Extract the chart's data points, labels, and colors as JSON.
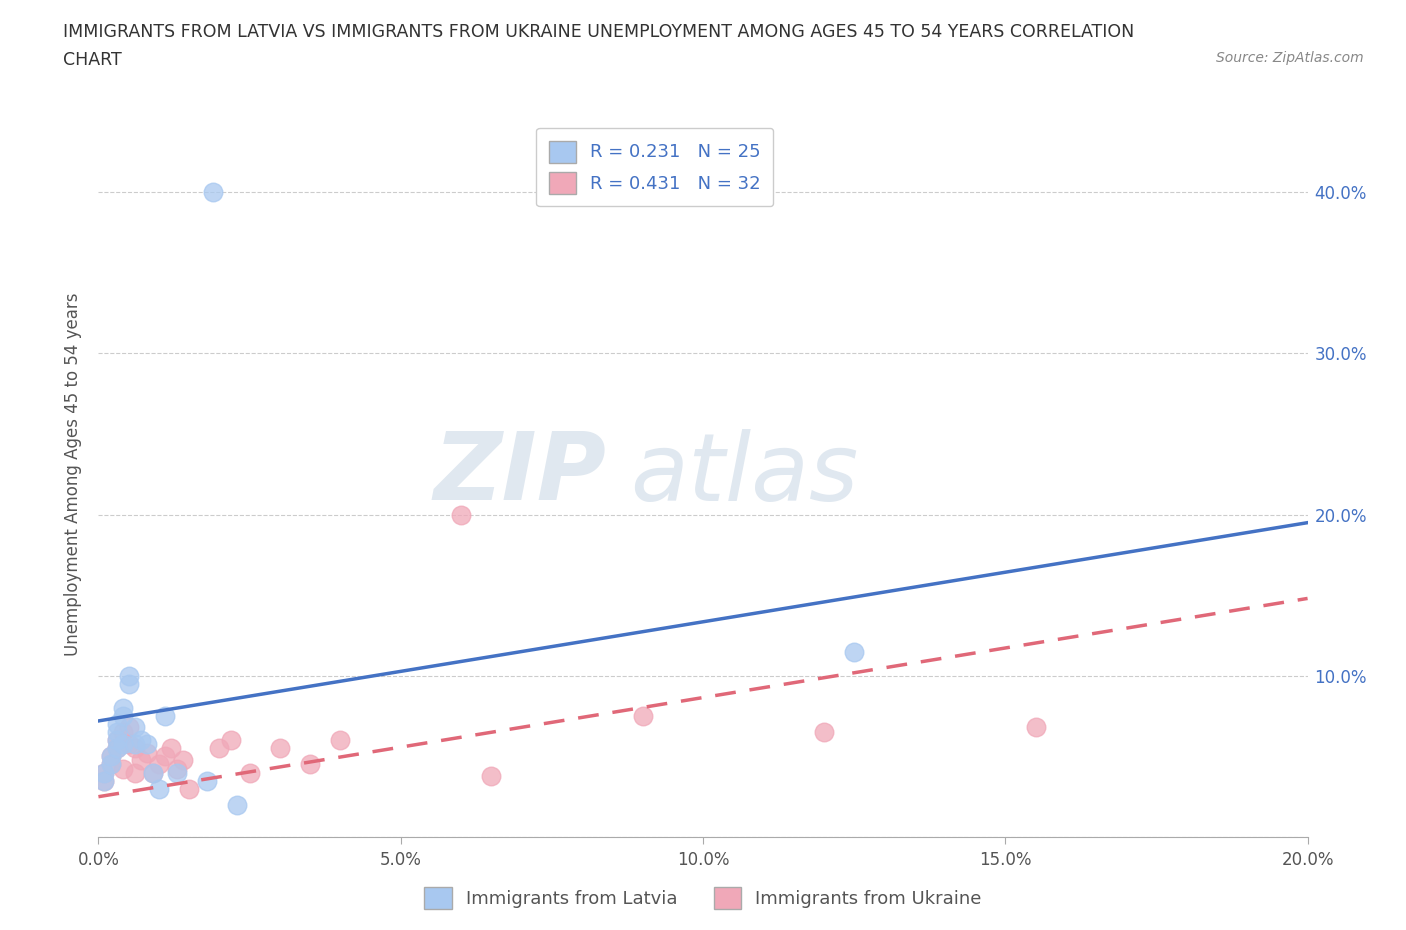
{
  "title_line1": "IMMIGRANTS FROM LATVIA VS IMMIGRANTS FROM UKRAINE UNEMPLOYMENT AMONG AGES 45 TO 54 YEARS CORRELATION",
  "title_line2": "CHART",
  "source": "Source: ZipAtlas.com",
  "ylabel": "Unemployment Among Ages 45 to 54 years",
  "xlim": [
    0,
    0.2
  ],
  "ylim": [
    0,
    0.45
  ],
  "xticks": [
    0.0,
    0.05,
    0.1,
    0.15,
    0.2
  ],
  "yticks": [
    0.0,
    0.1,
    0.2,
    0.3,
    0.4
  ],
  "xtick_labels": [
    "0.0%",
    "5.0%",
    "10.0%",
    "15.0%",
    "20.0%"
  ],
  "ytick_labels_right": [
    "",
    "10.0%",
    "20.0%",
    "30.0%",
    "40.0%"
  ],
  "latvia_color": "#a8c8f0",
  "ukraine_color": "#f0a8b8",
  "latvia_line_color": "#4472c4",
  "ukraine_line_color": "#e06878",
  "latvia_R": 0.231,
  "latvia_N": 25,
  "ukraine_R": 0.431,
  "ukraine_N": 32,
  "legend_label_latvia": "Immigrants from Latvia",
  "legend_label_ukraine": "Immigrants from Ukraine",
  "background_color": "#ffffff",
  "grid_color": "#cccccc",
  "watermark_zip": "ZIP",
  "watermark_atlas": "atlas",
  "latvia_line_x0": 0.0,
  "latvia_line_y0": 0.072,
  "latvia_line_x1": 0.2,
  "latvia_line_y1": 0.195,
  "ukraine_line_x0": 0.0,
  "ukraine_line_y0": 0.025,
  "ukraine_line_x1": 0.2,
  "ukraine_line_y1": 0.148,
  "latvia_x": [
    0.001,
    0.001,
    0.002,
    0.002,
    0.003,
    0.003,
    0.003,
    0.003,
    0.004,
    0.004,
    0.004,
    0.005,
    0.005,
    0.006,
    0.006,
    0.007,
    0.008,
    0.009,
    0.01,
    0.011,
    0.013,
    0.018,
    0.023,
    0.125,
    0.019
  ],
  "latvia_y": [
    0.04,
    0.035,
    0.05,
    0.045,
    0.06,
    0.055,
    0.065,
    0.07,
    0.058,
    0.075,
    0.08,
    0.095,
    0.1,
    0.058,
    0.068,
    0.06,
    0.058,
    0.04,
    0.03,
    0.075,
    0.04,
    0.035,
    0.02,
    0.115,
    0.4
  ],
  "ukraine_x": [
    0.001,
    0.001,
    0.002,
    0.002,
    0.003,
    0.003,
    0.004,
    0.004,
    0.005,
    0.005,
    0.006,
    0.006,
    0.007,
    0.008,
    0.009,
    0.01,
    0.011,
    0.012,
    0.013,
    0.014,
    0.015,
    0.02,
    0.022,
    0.025,
    0.03,
    0.035,
    0.04,
    0.06,
    0.065,
    0.09,
    0.12,
    0.155
  ],
  "ukraine_y": [
    0.04,
    0.035,
    0.05,
    0.045,
    0.06,
    0.055,
    0.065,
    0.042,
    0.058,
    0.068,
    0.04,
    0.055,
    0.048,
    0.052,
    0.04,
    0.045,
    0.05,
    0.055,
    0.042,
    0.048,
    0.03,
    0.055,
    0.06,
    0.04,
    0.055,
    0.045,
    0.06,
    0.2,
    0.038,
    0.075,
    0.065,
    0.068
  ]
}
